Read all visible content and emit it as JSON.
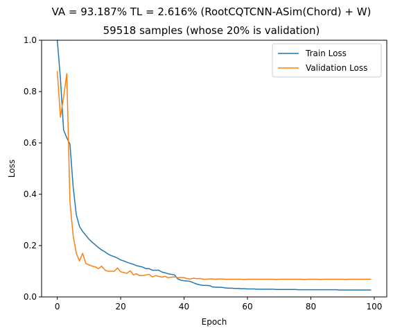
{
  "chart_data": {
    "type": "line",
    "title": "VA = 93.187% TL = 2.616% (RootCQTCNN-ASim(Chord) + W)",
    "subtitle": "59518 samples (whose 20% is validation)",
    "xlabel": "Epoch",
    "ylabel": "Loss",
    "xlim": [
      -4.95,
      103.95
    ],
    "ylim": [
      0,
      1.0
    ],
    "xticks": [
      0,
      20,
      40,
      60,
      80,
      100
    ],
    "yticks": [
      0.0,
      0.2,
      0.4,
      0.6,
      0.8,
      1.0
    ],
    "xtick_labels": [
      "0",
      "20",
      "40",
      "60",
      "80",
      "100"
    ],
    "ytick_labels": [
      "0.0",
      "0.2",
      "0.4",
      "0.6",
      "0.8",
      "1.0"
    ],
    "legend_position": "top-right",
    "grid": false,
    "series": [
      {
        "name": "Train Loss",
        "color": "#1f77b4",
        "values": [
          1.0,
          0.85,
          0.65,
          0.62,
          0.595,
          0.43,
          0.32,
          0.275,
          0.255,
          0.24,
          0.225,
          0.213,
          0.203,
          0.192,
          0.183,
          0.176,
          0.167,
          0.161,
          0.157,
          0.151,
          0.144,
          0.14,
          0.135,
          0.131,
          0.127,
          0.122,
          0.119,
          0.116,
          0.11,
          0.11,
          0.104,
          0.104,
          0.104,
          0.097,
          0.094,
          0.09,
          0.088,
          0.086,
          0.07,
          0.065,
          0.063,
          0.062,
          0.06,
          0.055,
          0.05,
          0.047,
          0.045,
          0.045,
          0.044,
          0.039,
          0.038,
          0.038,
          0.037,
          0.035,
          0.034,
          0.034,
          0.033,
          0.033,
          0.032,
          0.032,
          0.031,
          0.031,
          0.031,
          0.03,
          0.03,
          0.03,
          0.03,
          0.03,
          0.03,
          0.029,
          0.029,
          0.029,
          0.029,
          0.029,
          0.029,
          0.029,
          0.028,
          0.028,
          0.028,
          0.028,
          0.028,
          0.028,
          0.028,
          0.028,
          0.028,
          0.028,
          0.028,
          0.028,
          0.028,
          0.027,
          0.027,
          0.027,
          0.027,
          0.027,
          0.027,
          0.027,
          0.027,
          0.027,
          0.027,
          0.027
        ]
      },
      {
        "name": "Validation Loss",
        "color": "#ff7f0e",
        "values": [
          0.88,
          0.7,
          0.78,
          0.87,
          0.37,
          0.24,
          0.17,
          0.14,
          0.17,
          0.13,
          0.125,
          0.12,
          0.117,
          0.11,
          0.12,
          0.105,
          0.1,
          0.1,
          0.1,
          0.113,
          0.098,
          0.095,
          0.092,
          0.102,
          0.086,
          0.09,
          0.083,
          0.083,
          0.086,
          0.088,
          0.078,
          0.083,
          0.08,
          0.077,
          0.08,
          0.075,
          0.077,
          0.078,
          0.075,
          0.076,
          0.075,
          0.071,
          0.07,
          0.073,
          0.071,
          0.072,
          0.069,
          0.069,
          0.07,
          0.07,
          0.069,
          0.07,
          0.07,
          0.069,
          0.069,
          0.069,
          0.069,
          0.069,
          0.069,
          0.068,
          0.069,
          0.069,
          0.069,
          0.069,
          0.069,
          0.069,
          0.069,
          0.069,
          0.069,
          0.068,
          0.069,
          0.069,
          0.069,
          0.069,
          0.069,
          0.069,
          0.069,
          0.069,
          0.068,
          0.069,
          0.069,
          0.069,
          0.069,
          0.068,
          0.069,
          0.069,
          0.069,
          0.069,
          0.069,
          0.069,
          0.069,
          0.068,
          0.069,
          0.069,
          0.069,
          0.069,
          0.069,
          0.069,
          0.069,
          0.069
        ]
      }
    ]
  }
}
